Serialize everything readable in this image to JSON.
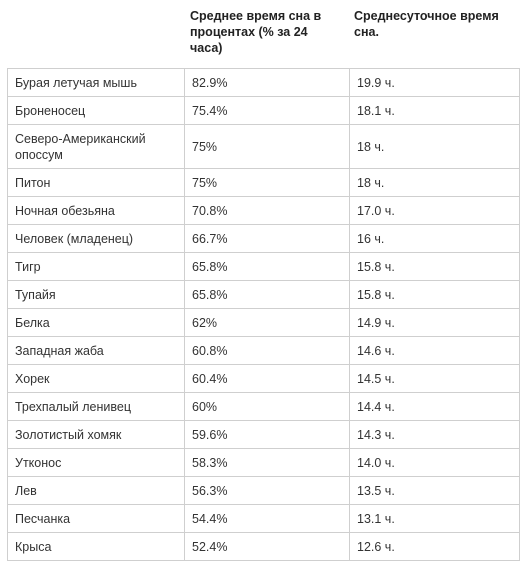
{
  "headers": {
    "col2": "Среднее время сна в процентах (% за 24 часа)",
    "col3": "Среднесуточное время сна."
  },
  "rows": [
    {
      "animal": "Бурая летучая мышь",
      "percent": "82.9%",
      "hours": "19.9 ч."
    },
    {
      "animal": "Броненосец",
      "percent": "75.4%",
      "hours": "18.1 ч."
    },
    {
      "animal": "Северо-Американский опоссум",
      "percent": "75%",
      "hours": "18 ч."
    },
    {
      "animal": "Питон",
      "percent": "75%",
      "hours": "18 ч."
    },
    {
      "animal": "Ночная обезьяна",
      "percent": "70.8%",
      "hours": "17.0 ч."
    },
    {
      "animal": "Человек (младенец)",
      "percent": "66.7%",
      "hours": "16 ч."
    },
    {
      "animal": "Тигр",
      "percent": "65.8%",
      "hours": "15.8 ч."
    },
    {
      "animal": "Тупайя",
      "percent": "65.8%",
      "hours": "15.8 ч."
    },
    {
      "animal": "Белка",
      "percent": "62%",
      "hours": "14.9 ч."
    },
    {
      "animal": "Западная жаба",
      "percent": "60.8%",
      "hours": "14.6 ч."
    },
    {
      "animal": "Хорек",
      "percent": "60.4%",
      "hours": "14.5 ч."
    },
    {
      "animal": "Трехпалый ленивец",
      "percent": "60%",
      "hours": "14.4 ч."
    },
    {
      "animal": "Золотистый хомяк",
      "percent": "59.6%",
      "hours": "14.3 ч."
    },
    {
      "animal": "Утконос",
      "percent": "58.3%",
      "hours": "14.0 ч."
    },
    {
      "animal": "Лев",
      "percent": "56.3%",
      "hours": "13.5 ч."
    },
    {
      "animal": "Песчанка",
      "percent": "54.4%",
      "hours": "13.1 ч."
    },
    {
      "animal": "Крыса",
      "percent": "52.4%",
      "hours": "12.6 ч."
    }
  ]
}
